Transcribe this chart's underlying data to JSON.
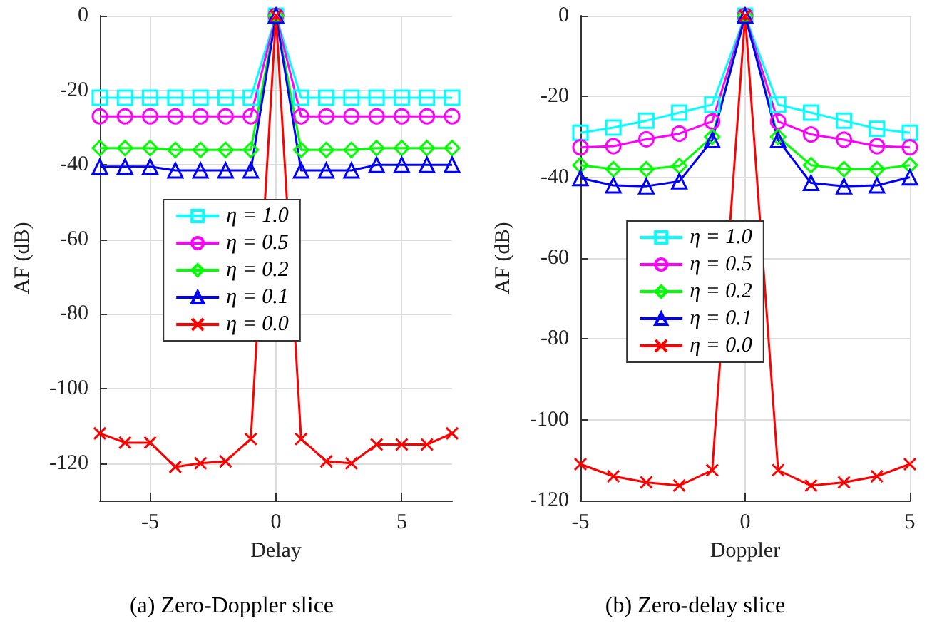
{
  "chart_data": [
    {
      "type": "line",
      "xlabel": "Delay",
      "ylabel": "AF (dB)",
      "annotations": [
        "(a) Zero-Doppler slice"
      ],
      "x": [
        -7,
        -6,
        -5,
        -4,
        -3,
        -2,
        -1,
        0,
        1,
        2,
        3,
        4,
        5,
        6,
        7
      ],
      "xlim": [
        -7,
        7
      ],
      "xticks": [
        -5,
        0,
        5
      ],
      "ylim": [
        -130,
        0
      ],
      "yticks": [
        -120,
        -100,
        -80,
        -60,
        -40,
        -20,
        0
      ],
      "grid": true,
      "legend": "center",
      "series": [
        {
          "name": "η = 1.0",
          "color": "#00ffff",
          "marker": "square",
          "values": [
            -22,
            -22,
            -22,
            -22,
            -22,
            -22,
            -22,
            0,
            -22,
            -22,
            -22,
            -22,
            -22,
            -22,
            -22
          ]
        },
        {
          "name": "η = 0.5",
          "color": "#ff00ff",
          "marker": "circle",
          "values": [
            -27,
            -27,
            -27,
            -27,
            -27,
            -27,
            -27,
            0,
            -27,
            -27,
            -27,
            -27,
            -27,
            -27,
            -27
          ]
        },
        {
          "name": "η = 0.2",
          "color": "#00ff00",
          "marker": "diamond",
          "values": [
            -35.5,
            -35.5,
            -35.5,
            -36,
            -36,
            -36,
            -36,
            0,
            -36,
            -36,
            -36,
            -35.5,
            -35.5,
            -35.5,
            -35.5
          ]
        },
        {
          "name": "η = 0.1",
          "color": "#0000ff",
          "marker": "triangle",
          "values": [
            -40.5,
            -40.5,
            -40.5,
            -41.5,
            -41.5,
            -41.5,
            -41.5,
            0,
            -41.5,
            -41.5,
            -41.5,
            -40,
            -40,
            -40,
            -40
          ]
        },
        {
          "name": "η = 0.0",
          "color": "#ff0000",
          "marker": "cross",
          "values": [
            -112,
            -114.5,
            -114.5,
            -121,
            -120,
            -119.5,
            -113.5,
            0,
            -113.5,
            -119.5,
            -120,
            -115,
            -115,
            -115,
            -112
          ]
        }
      ]
    },
    {
      "type": "line",
      "xlabel": "Doppler",
      "ylabel": "AF (dB)",
      "annotations": [
        "(b) Zero-delay slice"
      ],
      "x": [
        -5,
        -4,
        -3,
        -2,
        -1,
        0,
        1,
        2,
        3,
        4,
        5
      ],
      "xlim": [
        -5,
        5
      ],
      "xticks": [
        -5,
        0,
        5
      ],
      "ylim": [
        -120,
        0
      ],
      "yticks": [
        -120,
        -100,
        -80,
        -60,
        -40,
        -20,
        0
      ],
      "grid": true,
      "legend": "center",
      "series": [
        {
          "name": "η = 1.0",
          "color": "#00ffff",
          "marker": "square",
          "values": [
            -29,
            -27.7,
            -26,
            -24,
            -22,
            0,
            -22,
            -24,
            -26,
            -28,
            -29
          ]
        },
        {
          "name": "η = 0.5",
          "color": "#ff00ff",
          "marker": "circle",
          "values": [
            -32.6,
            -32.3,
            -30.6,
            -29.2,
            -26.2,
            0,
            -26.2,
            -29.4,
            -30.7,
            -32.3,
            -32.6
          ]
        },
        {
          "name": "η = 0.2",
          "color": "#00ff00",
          "marker": "diamond",
          "values": [
            -37,
            -38,
            -38,
            -37.2,
            -30,
            0,
            -30,
            -37,
            -38,
            -38,
            -37
          ]
        },
        {
          "name": "η = 0.1",
          "color": "#0000ff",
          "marker": "triangle",
          "values": [
            -40.2,
            -42,
            -42.2,
            -41,
            -30.8,
            0,
            -30.8,
            -41.4,
            -42.2,
            -42,
            -40
          ]
        },
        {
          "name": "η = 0.0",
          "color": "#ff0000",
          "marker": "cross",
          "values": [
            -111,
            -114,
            -115.5,
            -116.3,
            -112.5,
            0,
            -112.5,
            -116.3,
            -115.5,
            -114,
            -111
          ]
        }
      ]
    }
  ]
}
